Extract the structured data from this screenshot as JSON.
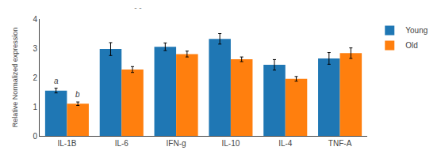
{
  "chart_data": {
    "type": "bar",
    "title": "- -",
    "categories": [
      "IL-1B",
      "IL-6",
      "IFN-g",
      "IL-10",
      "IL-4",
      "TNF-A"
    ],
    "series": [
      {
        "name": "Young",
        "values": [
          1.55,
          2.97,
          3.05,
          3.32,
          2.43,
          2.65
        ],
        "errors": [
          0.08,
          0.22,
          0.13,
          0.18,
          0.18,
          0.2
        ]
      },
      {
        "name": "Old",
        "values": [
          1.1,
          2.27,
          2.8,
          2.62,
          1.95,
          2.83
        ],
        "errors": [
          0.06,
          0.1,
          0.1,
          0.08,
          0.08,
          0.18
        ]
      }
    ],
    "ylabel": "Relative Normalized expression",
    "ylim": [
      0,
      4
    ],
    "yticks": [
      0,
      1,
      2,
      3,
      4
    ],
    "grid": false,
    "legend": "right",
    "annotations": [
      {
        "text": "a",
        "category": "IL-1B",
        "series": "Young"
      },
      {
        "text": "b",
        "category": "IL-1B",
        "series": "Old"
      }
    ]
  }
}
